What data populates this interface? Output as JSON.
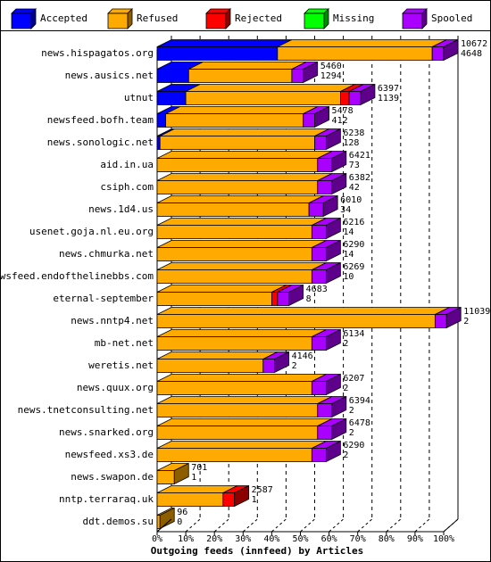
{
  "chart_data": {
    "type": "bar",
    "stacked": true,
    "orientation": "horizontal",
    "title": "Outgoing feeds (innfeed) by Articles",
    "x_tick_labels": [
      "0%",
      "10%",
      "20%",
      "30%",
      "40%",
      "50%",
      "60%",
      "70%",
      "80%",
      "90%",
      "100%"
    ],
    "xlim": [
      0,
      100
    ],
    "grid": true,
    "legend_position": "top",
    "series": [
      {
        "name": "Accepted",
        "color": "#0000ff"
      },
      {
        "name": "Refused",
        "color": "#ffaa00"
      },
      {
        "name": "Rejected",
        "color": "#ff0000"
      },
      {
        "name": "Missing",
        "color": "#00ff00"
      },
      {
        "name": "Spooled",
        "color": "#aa00ff"
      }
    ],
    "categories": [
      "news.hispagatos.org",
      "news.ausics.net",
      "utnut",
      "newsfeed.bofh.team",
      "news.sonologic.net",
      "aid.in.ua",
      "csiph.com",
      "news.1d4.us",
      "usenet.goja.nl.eu.org",
      "news.chmurka.net",
      "newsfeed.endofthelinebbs.com",
      "eternal-september",
      "news.nntp4.net",
      "mb-net.net",
      "weretis.net",
      "news.quux.org",
      "news.tnetconsulting.net",
      "news.snarked.org",
      "newsfeed.xs3.de",
      "news.swapon.de",
      "nntp.terraraq.uk",
      "ddt.demos.su"
    ],
    "values_percent": {
      "Accepted": [
        42,
        11,
        10,
        3,
        1,
        0,
        0,
        0,
        0,
        0,
        0,
        0,
        0,
        0,
        0,
        0,
        0,
        0,
        0,
        0,
        0,
        0
      ],
      "Refused": [
        54,
        36,
        54,
        48,
        54,
        56,
        56,
        53,
        54,
        54,
        54,
        40,
        97,
        54,
        37,
        54,
        56,
        56,
        54,
        6,
        23,
        1
      ],
      "Rejected": [
        0,
        0,
        3,
        0,
        0,
        0,
        0,
        0,
        0,
        0,
        0,
        2,
        0,
        0,
        0,
        0,
        0,
        0,
        0,
        0,
        4,
        0
      ],
      "Missing": [
        0,
        0,
        0,
        0,
        0,
        0,
        0,
        0,
        0,
        0,
        0,
        0,
        0,
        0,
        0,
        0,
        0,
        0,
        0,
        0,
        0,
        0
      ],
      "Spooled": [
        4,
        4,
        4,
        4,
        4,
        5,
        5,
        5,
        5,
        5,
        5,
        4,
        4,
        5,
        4,
        5,
        5,
        5,
        5,
        0,
        0,
        0
      ]
    },
    "label_top": [
      "10672",
      "5460",
      "6397",
      "5478",
      "6238",
      "6421",
      "6382",
      "6010",
      "6216",
      "6290",
      "6269",
      "4683",
      "11039",
      "6134",
      "4146",
      "6207",
      "6394",
      "6478",
      "6290",
      "701",
      "2587",
      "96"
    ],
    "label_bottom": [
      "4648",
      "1294",
      "1139",
      "412",
      "128",
      "73",
      "42",
      "34",
      "14",
      "14",
      "10",
      "8",
      "2",
      "2",
      "2",
      "2",
      "2",
      "2",
      "2",
      "1",
      "1",
      "0"
    ]
  }
}
